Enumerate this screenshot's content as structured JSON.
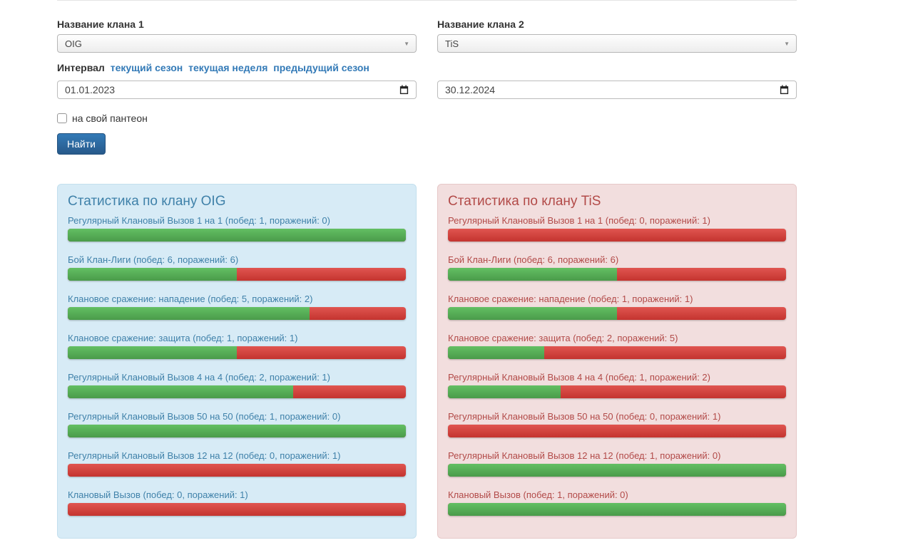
{
  "form": {
    "clan1_label": "Название клана 1",
    "clan1_value": "OIG",
    "clan2_label": "Название клана 2",
    "clan2_value": "TiS",
    "interval_label": "Интервал",
    "interval_links": [
      "текущий сезон",
      "текущая неделя",
      "предыдущий сезон"
    ],
    "date_from": "01.01.2023",
    "date_to": "30.12.2024",
    "checkbox_label": "на свой пантеон",
    "checkbox_checked": false,
    "submit_label": "Найти"
  },
  "panels": [
    {
      "title": "Статистика по клану OIG",
      "theme": "info",
      "stats": [
        {
          "label": "Регулярный Клановый Вызов 1 на 1 (побед: 1, поражений: 0)",
          "wins": 1,
          "losses": 0
        },
        {
          "label": "Бой Клан-Лиги (побед: 6, поражений: 6)",
          "wins": 6,
          "losses": 6
        },
        {
          "label": "Клановое сражение: нападение (побед: 5, поражений: 2)",
          "wins": 5,
          "losses": 2
        },
        {
          "label": "Клановое сражение: защита (побед: 1, поражений: 1)",
          "wins": 1,
          "losses": 1
        },
        {
          "label": "Регулярный Клановый Вызов 4 на 4 (побед: 2, поражений: 1)",
          "wins": 2,
          "losses": 1
        },
        {
          "label": "Регулярный Клановый Вызов 50 на 50 (побед: 1, поражений: 0)",
          "wins": 1,
          "losses": 0
        },
        {
          "label": "Регулярный Клановый Вызов 12 на 12 (побед: 0, поражений: 1)",
          "wins": 0,
          "losses": 1
        },
        {
          "label": "Клановый Вызов (побед: 0, поражений: 1)",
          "wins": 0,
          "losses": 1
        }
      ]
    },
    {
      "title": "Статистика по клану TiS",
      "theme": "danger",
      "stats": [
        {
          "label": "Регулярный Клановый Вызов 1 на 1 (побед: 0, поражений: 1)",
          "wins": 0,
          "losses": 1
        },
        {
          "label": "Бой Клан-Лиги (побед: 6, поражений: 6)",
          "wins": 6,
          "losses": 6
        },
        {
          "label": "Клановое сражение: нападение (побед: 1, поражений: 1)",
          "wins": 1,
          "losses": 1
        },
        {
          "label": "Клановое сражение: защита (побед: 2, поражений: 5)",
          "wins": 2,
          "losses": 5
        },
        {
          "label": "Регулярный Клановый Вызов 4 на 4 (побед: 1, поражений: 2)",
          "wins": 1,
          "losses": 2
        },
        {
          "label": "Регулярный Клановый Вызов 50 на 50 (побед: 0, поражений: 1)",
          "wins": 0,
          "losses": 1
        },
        {
          "label": "Регулярный Клановый Вызов 12 на 12 (побед: 1, поражений: 0)",
          "wins": 1,
          "losses": 0
        },
        {
          "label": "Клановый Вызов (побед: 1, поражений: 0)",
          "wins": 1,
          "losses": 0
        }
      ]
    }
  ],
  "colors": {
    "accent-blue": "#337ab7",
    "button-top": "#337ab7",
    "button-bottom": "#27598a",
    "button-border": "#24527f",
    "win-top": "#63bf63",
    "win-bottom": "#4a9b4a",
    "loss-top": "#e05550",
    "loss-bottom": "#c4342f",
    "panel-info-bg": "#d7ebf6",
    "panel-info-border": "#c3dfee",
    "panel-info-text": "#3f81a9",
    "panel-danger-bg": "#f2dede",
    "panel-danger-border": "#e6c8c8",
    "panel-danger-text": "#b24a48"
  }
}
